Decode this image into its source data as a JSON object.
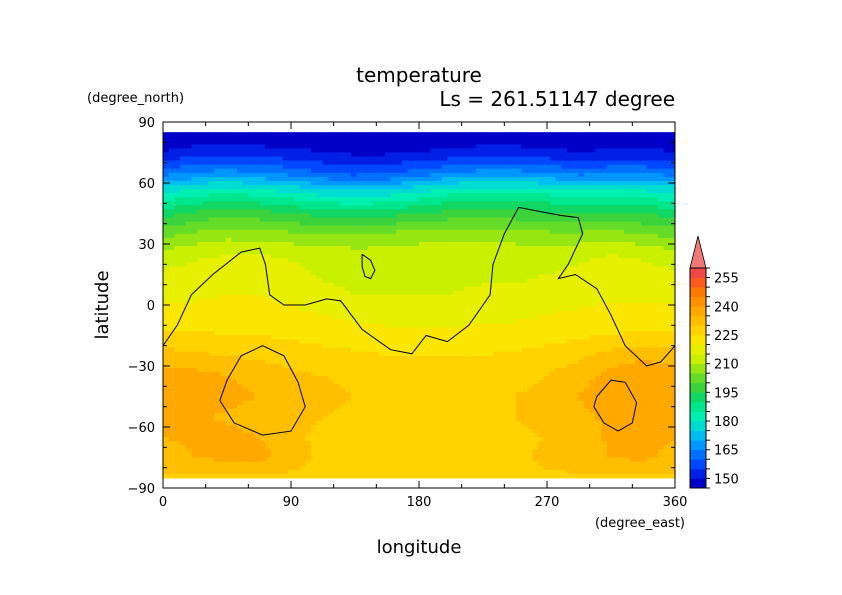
{
  "chart_data": {
    "type": "heatmap",
    "title": "temperature",
    "subtitle": "Ls = 261.51147 degree",
    "xlabel": "longitude",
    "ylabel": "latitude",
    "x_unit": "(degree_east)",
    "y_unit": "(degree_north)",
    "xlim": [
      0,
      360
    ],
    "ylim": [
      -90,
      90
    ],
    "x_ticks": [
      "0",
      "90",
      "180",
      "270",
      "360"
    ],
    "y_ticks": [
      "90",
      "60",
      "30",
      "0",
      "−30",
      "−60",
      "−90"
    ],
    "colorbar": {
      "levels": [
        145,
        150,
        155,
        160,
        165,
        170,
        175,
        180,
        185,
        190,
        195,
        200,
        205,
        210,
        215,
        220,
        225,
        230,
        235,
        240,
        245,
        250,
        255,
        260
      ],
      "labels": [
        "150",
        "165",
        "180",
        "195",
        "210",
        "225",
        "240",
        "255"
      ],
      "colors": [
        "#0000c8",
        "#0020e6",
        "#0048ff",
        "#0070ff",
        "#0096ff",
        "#00bef0",
        "#00dcd2",
        "#00f0b4",
        "#00e68c",
        "#10d664",
        "#3cd23c",
        "#64dc28",
        "#96e614",
        "#c8f000",
        "#e6f000",
        "#fae600",
        "#ffd200",
        "#ffbe00",
        "#ffa800",
        "#ff9000",
        "#ff7800",
        "#ff5a1e",
        "#f04646",
        "#f07878"
      ]
    },
    "x": [
      0,
      22.5,
      45,
      67.5,
      90,
      112.5,
      135,
      157.5,
      180,
      202.5,
      225,
      247.5,
      270,
      292.5,
      315,
      337.5,
      360
    ],
    "y": [
      85,
      75,
      65,
      55,
      45,
      35,
      25,
      15,
      5,
      -5,
      -15,
      -25,
      -35,
      -45,
      -55,
      -65,
      -75,
      -85
    ],
    "z": [
      [
        146,
        146,
        146,
        146,
        146,
        146,
        146,
        146,
        146,
        146,
        146,
        146,
        146,
        146,
        146,
        146,
        146
      ],
      [
        150,
        152,
        153,
        152,
        151,
        150,
        149,
        149,
        150,
        151,
        152,
        152,
        151,
        150,
        151,
        151,
        150
      ],
      [
        163,
        165,
        167,
        165,
        163,
        160,
        158,
        159,
        162,
        165,
        167,
        167,
        165,
        163,
        164,
        164,
        163
      ],
      [
        180,
        183,
        185,
        183,
        181,
        178,
        177,
        178,
        181,
        184,
        185,
        185,
        184,
        182,
        183,
        182,
        180
      ],
      [
        193,
        196,
        198,
        197,
        195,
        193,
        192,
        193,
        195,
        197,
        198,
        197,
        196,
        195,
        196,
        195,
        193
      ],
      [
        203,
        206,
        208,
        207,
        206,
        205,
        205,
        206,
        207,
        208,
        208,
        207,
        206,
        206,
        207,
        205,
        203
      ],
      [
        212,
        214,
        215,
        215,
        214,
        213,
        212,
        212,
        213,
        213,
        213,
        213,
        213,
        214,
        215,
        214,
        212
      ],
      [
        216,
        217,
        218,
        219,
        217,
        214,
        213,
        213,
        213,
        214,
        214,
        214,
        215,
        216,
        217,
        217,
        216
      ],
      [
        219,
        219,
        220,
        220,
        219,
        217,
        215,
        215,
        215,
        215,
        216,
        216,
        217,
        218,
        219,
        219,
        219
      ],
      [
        222,
        222,
        222,
        222,
        221,
        220,
        219,
        218,
        218,
        218,
        219,
        219,
        220,
        221,
        222,
        222,
        222
      ],
      [
        226,
        226,
        225,
        225,
        224,
        223,
        222,
        222,
        221,
        221,
        222,
        222,
        223,
        224,
        225,
        226,
        226
      ],
      [
        232,
        231,
        230,
        229,
        228,
        227,
        226,
        225,
        225,
        225,
        225,
        226,
        227,
        229,
        232,
        234,
        232
      ],
      [
        238,
        237,
        235,
        233,
        231,
        230,
        229,
        228,
        227,
        226,
        227,
        228,
        230,
        233,
        237,
        239,
        238
      ],
      [
        240,
        239,
        237,
        235,
        233,
        231,
        230,
        229,
        228,
        228,
        229,
        230,
        232,
        235,
        238,
        240,
        240
      ],
      [
        238,
        236,
        234,
        232,
        231,
        230,
        229,
        228,
        228,
        228,
        229,
        230,
        232,
        234,
        236,
        238,
        238
      ],
      [
        235,
        236,
        237,
        235,
        231,
        229,
        228,
        227,
        227,
        227,
        228,
        229,
        230,
        232,
        236,
        238,
        235
      ],
      [
        233,
        235,
        236,
        237,
        232,
        229,
        228,
        228,
        228,
        228,
        228,
        229,
        231,
        233,
        235,
        236,
        233
      ],
      [
        229,
        229,
        229,
        229,
        229,
        229,
        229,
        229,
        229,
        229,
        229,
        229,
        229,
        229,
        229,
        229,
        229
      ]
    ],
    "contours": [
      [
        [
          0,
          -20
        ],
        [
          10,
          -10
        ],
        [
          20,
          5
        ],
        [
          35,
          15
        ],
        [
          55,
          26
        ],
        [
          68,
          28
        ],
        [
          72,
          20
        ],
        [
          75,
          5
        ],
        [
          85,
          0
        ],
        [
          100,
          0
        ],
        [
          115,
          3
        ],
        [
          125,
          2
        ],
        [
          140,
          -12
        ],
        [
          160,
          -22
        ],
        [
          175,
          -24
        ],
        [
          185,
          -15
        ],
        [
          200,
          -18
        ],
        [
          215,
          -10
        ],
        [
          225,
          0
        ],
        [
          230,
          5
        ],
        [
          232,
          20
        ],
        [
          240,
          35
        ],
        [
          250,
          48
        ],
        [
          265,
          46
        ],
        [
          280,
          44
        ],
        [
          292,
          43
        ],
        [
          295,
          35
        ],
        [
          285,
          20
        ],
        [
          278,
          13
        ],
        [
          290,
          15
        ],
        [
          305,
          8
        ],
        [
          315,
          -5
        ],
        [
          325,
          -20
        ],
        [
          340,
          -30
        ],
        [
          350,
          -28
        ],
        [
          360,
          -20
        ]
      ],
      [
        [
          140,
          25
        ],
        [
          146,
          22
        ],
        [
          149,
          17
        ],
        [
          146,
          13
        ],
        [
          142,
          14
        ],
        [
          140,
          19
        ],
        [
          140,
          25
        ]
      ],
      [
        [
          45,
          -37
        ],
        [
          55,
          -25
        ],
        [
          70,
          -20
        ],
        [
          85,
          -25
        ],
        [
          95,
          -38
        ],
        [
          100,
          -50
        ],
        [
          90,
          -62
        ],
        [
          70,
          -64
        ],
        [
          50,
          -58
        ],
        [
          40,
          -47
        ],
        [
          45,
          -37
        ]
      ],
      [
        [
          305,
          -45
        ],
        [
          315,
          -37
        ],
        [
          325,
          -38
        ],
        [
          333,
          -48
        ],
        [
          330,
          -58
        ],
        [
          320,
          -62
        ],
        [
          310,
          -58
        ],
        [
          303,
          -50
        ],
        [
          305,
          -45
        ]
      ]
    ]
  }
}
